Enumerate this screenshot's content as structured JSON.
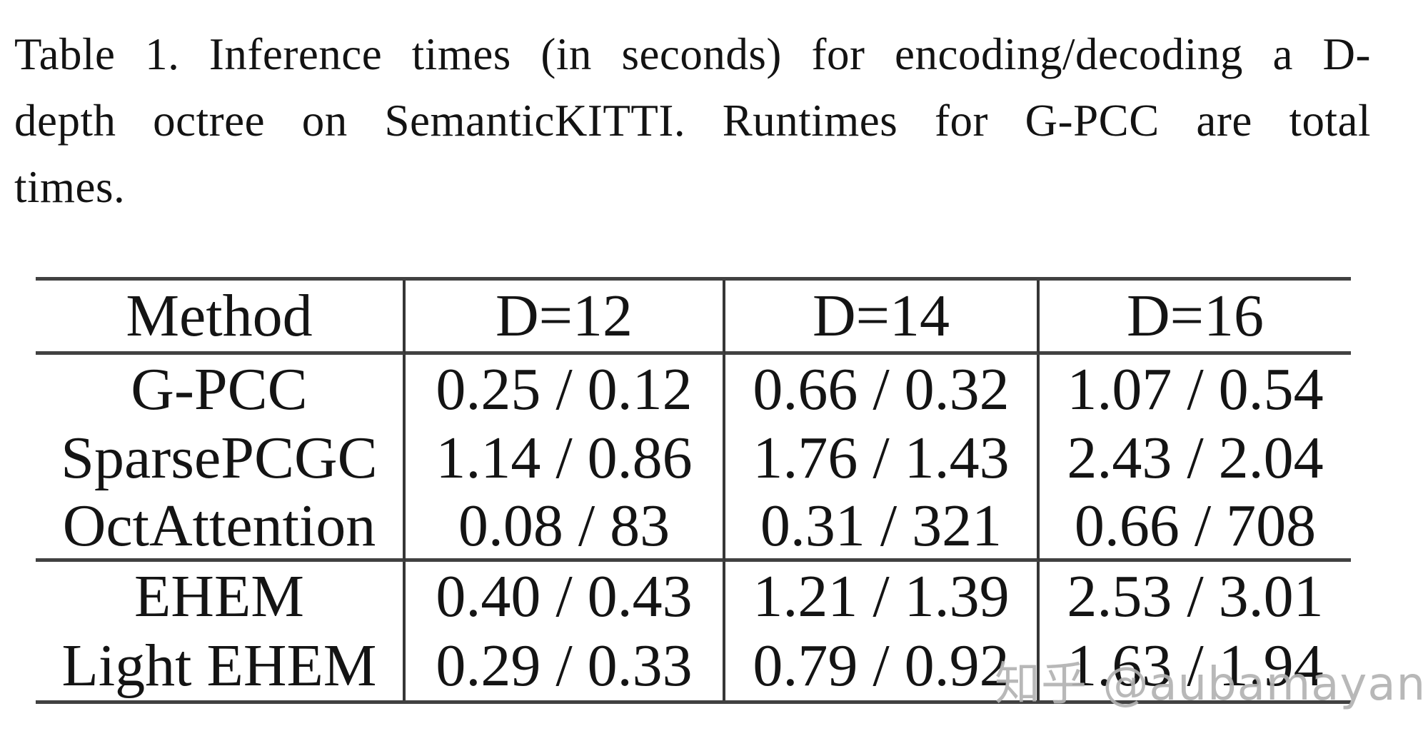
{
  "caption": {
    "text": "Table 1. Inference times (in seconds) for encoding/decoding a D-depth octree on SemanticKITTI. Runtimes for G-PCC are total times.",
    "lines": [
      "Table 1. Inference times (in seconds) for encoding/decoding a D-",
      "depth octree on SemanticKITTI. Runtimes for G-PCC are total",
      "times."
    ]
  },
  "table": {
    "columns": [
      "Method",
      "D=12",
      "D=14",
      "D=16"
    ],
    "rows": [
      {
        "cells": [
          "G-PCC",
          "0.25 / 0.12",
          "0.66 / 0.32",
          "1.07 / 0.54"
        ]
      },
      {
        "cells": [
          "SparsePCGC",
          "1.14 / 0.86",
          "1.76 / 1.43",
          "2.43 / 2.04"
        ]
      },
      {
        "cells": [
          "OctAttention",
          "0.08 / 83",
          "0.31 / 321",
          "0.66 / 708"
        ]
      },
      {
        "cells": [
          "EHEM",
          "0.40 / 0.43",
          "1.21 / 1.39",
          "2.53 / 3.01"
        ]
      },
      {
        "cells": [
          "Light EHEM",
          "0.29 / 0.33",
          "0.79 / 0.92",
          "1.63 / 1.94"
        ]
      }
    ]
  },
  "watermark": {
    "text": "知乎 @aubamayang",
    "color": "#b2b2b2"
  },
  "colors": {
    "background": "#ffffff",
    "text": "#141414",
    "rule": "#414141"
  },
  "chart_data": {
    "type": "table",
    "title": "Table 1. Inference times (in seconds) for encoding/decoding a D-depth octree on SemanticKITTI. Runtimes for G-PCC are total times.",
    "columns": [
      "Method",
      "D=12",
      "D=14",
      "D=16"
    ],
    "rows": [
      [
        "G-PCC",
        "0.25 / 0.12",
        "0.66 / 0.32",
        "1.07 / 0.54"
      ],
      [
        "SparsePCGC",
        "1.14 / 0.86",
        "1.76 / 1.43",
        "2.43 / 2.04"
      ],
      [
        "OctAttention",
        "0.08 / 83",
        "0.31 / 321",
        "0.66 / 708"
      ],
      [
        "EHEM",
        "0.40 / 0.43",
        "1.21 / 1.39",
        "2.53 / 3.01"
      ],
      [
        "Light EHEM",
        "0.29 / 0.33",
        "0.79 / 0.92",
        "1.63 / 1.94"
      ]
    ],
    "value_format": "encode seconds / decode seconds"
  }
}
